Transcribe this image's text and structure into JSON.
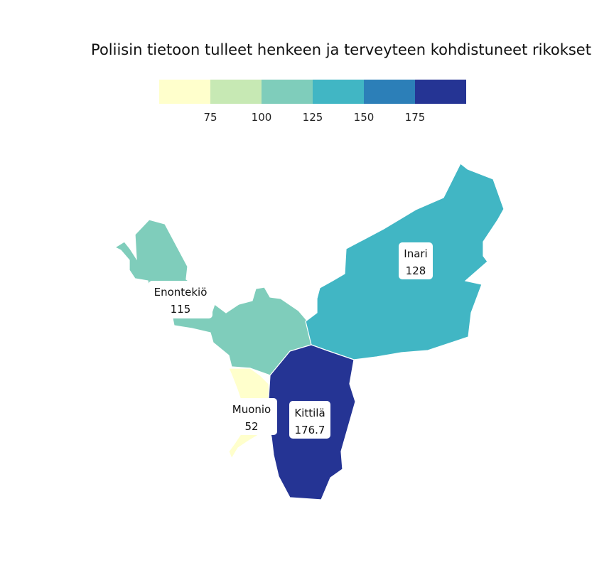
{
  "title": "Poliisin tietoon tulleet henkeen ja terveyteen kohdistuneet rikokset",
  "legend": {
    "colors": [
      "#ffffcc",
      "#c7e9b4",
      "#7fcdbb",
      "#41b6c4",
      "#2c7fb8",
      "#253494"
    ],
    "ticks": [
      "75",
      "100",
      "125",
      "150",
      "175"
    ]
  },
  "regions": [
    {
      "name": "Enontekiö",
      "value": "115",
      "color": "#7fcdbb"
    },
    {
      "name": "Inari",
      "value": "128",
      "color": "#41b6c4"
    },
    {
      "name": "Muonio",
      "value": "52",
      "color": "#ffffcc"
    },
    {
      "name": "Kittilä",
      "value": "176.7",
      "color": "#253494"
    }
  ]
}
